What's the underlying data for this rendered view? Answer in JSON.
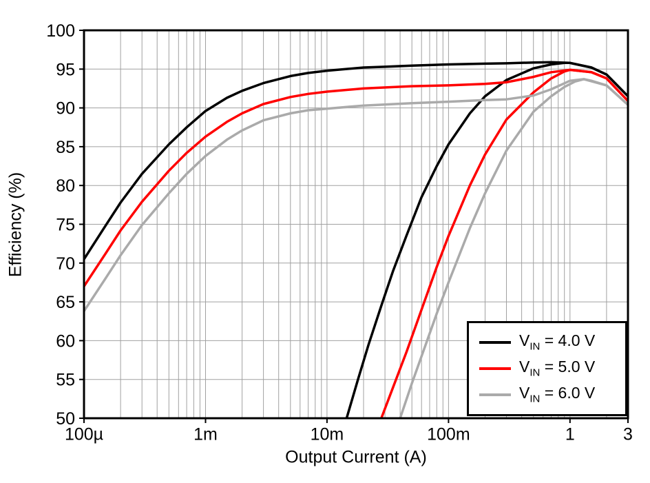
{
  "chart_data": {
    "type": "line",
    "title": "",
    "xlabel": "Output Current (A)",
    "ylabel": "Efficiency (%)",
    "x_scale": "log",
    "xlim": [
      0.0001,
      3
    ],
    "ylim": [
      50,
      100
    ],
    "y_tick_step": 5,
    "grid": true,
    "legend_position": "bottom-right",
    "x_ticks": [
      {
        "v": 0.0001,
        "label": "100µ"
      },
      {
        "v": 0.001,
        "label": "1m"
      },
      {
        "v": 0.01,
        "label": "10m"
      },
      {
        "v": 0.1,
        "label": "100m"
      },
      {
        "v": 1,
        "label": "1"
      },
      {
        "v": 3,
        "label": "3"
      }
    ],
    "series": [
      {
        "name": "VIN = 4.0 V",
        "label_prefix": "V",
        "label_sub": "IN",
        "label_suffix": " = 4.0 V",
        "color": "#000000",
        "branch": "power-save-mode",
        "show_in_legend": true,
        "points": [
          [
            0.0001,
            70.5
          ],
          [
            0.00015,
            74.8
          ],
          [
            0.0002,
            77.8
          ],
          [
            0.0003,
            81.5
          ],
          [
            0.0005,
            85.3
          ],
          [
            0.0007,
            87.5
          ],
          [
            0.001,
            89.6
          ],
          [
            0.0015,
            91.3
          ],
          [
            0.002,
            92.2
          ],
          [
            0.003,
            93.2
          ],
          [
            0.005,
            94.1
          ],
          [
            0.007,
            94.5
          ],
          [
            0.01,
            94.8
          ],
          [
            0.02,
            95.2
          ],
          [
            0.03,
            95.3
          ],
          [
            0.05,
            95.45
          ],
          [
            0.1,
            95.6
          ],
          [
            0.2,
            95.7
          ],
          [
            0.3,
            95.75
          ],
          [
            0.5,
            95.85
          ],
          [
            0.7,
            95.9
          ],
          [
            1,
            95.8
          ],
          [
            1.5,
            95.2
          ],
          [
            2,
            94.3
          ],
          [
            3,
            91.5
          ]
        ]
      },
      {
        "name": "VIN = 4.0 V (forced PWM)",
        "label_prefix": "V",
        "label_sub": "IN",
        "label_suffix": " = 4.0 V",
        "color": "#000000",
        "branch": "forced-pwm",
        "show_in_legend": false,
        "points": [
          [
            0.0145,
            50
          ],
          [
            0.018,
            55
          ],
          [
            0.022,
            59.5
          ],
          [
            0.028,
            64.5
          ],
          [
            0.035,
            69
          ],
          [
            0.045,
            73.5
          ],
          [
            0.06,
            78.5
          ],
          [
            0.08,
            82.5
          ],
          [
            0.1,
            85.3
          ],
          [
            0.15,
            89.3
          ],
          [
            0.2,
            91.5
          ],
          [
            0.3,
            93.6
          ],
          [
            0.5,
            95.1
          ],
          [
            0.7,
            95.6
          ],
          [
            0.9,
            95.8
          ],
          [
            1,
            95.8
          ],
          [
            1.5,
            95.2
          ],
          [
            2,
            94.3
          ],
          [
            3,
            91.5
          ]
        ]
      },
      {
        "name": "VIN = 5.0 V",
        "label_prefix": "V",
        "label_sub": "IN",
        "label_suffix": " = 5.0 V",
        "color": "#ff0000",
        "branch": "power-save-mode",
        "show_in_legend": true,
        "points": [
          [
            0.0001,
            67
          ],
          [
            0.00015,
            71.2
          ],
          [
            0.0002,
            74.2
          ],
          [
            0.0003,
            77.9
          ],
          [
            0.0005,
            81.9
          ],
          [
            0.0007,
            84.2
          ],
          [
            0.001,
            86.3
          ],
          [
            0.0015,
            88.2
          ],
          [
            0.002,
            89.3
          ],
          [
            0.003,
            90.5
          ],
          [
            0.005,
            91.4
          ],
          [
            0.007,
            91.8
          ],
          [
            0.01,
            92.1
          ],
          [
            0.02,
            92.5
          ],
          [
            0.05,
            92.8
          ],
          [
            0.1,
            92.9
          ],
          [
            0.2,
            93.1
          ],
          [
            0.3,
            93.3
          ],
          [
            0.5,
            94.0
          ],
          [
            0.7,
            94.6
          ],
          [
            1,
            94.9
          ],
          [
            1.5,
            94.6
          ],
          [
            2,
            93.8
          ],
          [
            3,
            90.9
          ]
        ]
      },
      {
        "name": "VIN = 5.0 V (forced PWM)",
        "label_prefix": "V",
        "label_sub": "IN",
        "label_suffix": " = 5.0 V",
        "color": "#ff0000",
        "branch": "forced-pwm",
        "show_in_legend": false,
        "points": [
          [
            0.028,
            50
          ],
          [
            0.035,
            54
          ],
          [
            0.045,
            58.5
          ],
          [
            0.06,
            64
          ],
          [
            0.08,
            69.5
          ],
          [
            0.1,
            73.5
          ],
          [
            0.15,
            80
          ],
          [
            0.2,
            84
          ],
          [
            0.3,
            88.5
          ],
          [
            0.5,
            92
          ],
          [
            0.7,
            93.8
          ],
          [
            0.9,
            94.7
          ],
          [
            1,
            94.9
          ],
          [
            1.5,
            94.6
          ],
          [
            2,
            93.8
          ],
          [
            3,
            90.9
          ]
        ]
      },
      {
        "name": "VIN = 6.0 V",
        "label_prefix": "V",
        "label_sub": "IN",
        "label_suffix": " = 6.0 V",
        "color": "#aaaaaa",
        "branch": "power-save-mode",
        "show_in_legend": true,
        "points": [
          [
            0.0001,
            63.8
          ],
          [
            0.00015,
            68
          ],
          [
            0.0002,
            71
          ],
          [
            0.0003,
            74.9
          ],
          [
            0.0005,
            79
          ],
          [
            0.0007,
            81.5
          ],
          [
            0.001,
            83.8
          ],
          [
            0.0015,
            85.9
          ],
          [
            0.002,
            87.1
          ],
          [
            0.003,
            88.4
          ],
          [
            0.005,
            89.3
          ],
          [
            0.007,
            89.7
          ],
          [
            0.01,
            89.9
          ],
          [
            0.02,
            90.3
          ],
          [
            0.05,
            90.6
          ],
          [
            0.1,
            90.8
          ],
          [
            0.2,
            91.0
          ],
          [
            0.3,
            91.1
          ],
          [
            0.5,
            91.6
          ],
          [
            0.7,
            92.4
          ],
          [
            1,
            93.5
          ],
          [
            1.3,
            93.7
          ],
          [
            2,
            92.9
          ],
          [
            3,
            90.4
          ]
        ]
      },
      {
        "name": "VIN = 6.0 V (forced PWM)",
        "label_prefix": "V",
        "label_sub": "IN",
        "label_suffix": " = 6.0 V",
        "color": "#aaaaaa",
        "branch": "forced-pwm",
        "show_in_legend": false,
        "points": [
          [
            0.04,
            50
          ],
          [
            0.05,
            54.5
          ],
          [
            0.065,
            59.5
          ],
          [
            0.08,
            63.5
          ],
          [
            0.1,
            67.5
          ],
          [
            0.15,
            74.5
          ],
          [
            0.2,
            79
          ],
          [
            0.3,
            84.5
          ],
          [
            0.5,
            89.5
          ],
          [
            0.7,
            91.5
          ],
          [
            0.9,
            92.7
          ],
          [
            1.1,
            93.4
          ],
          [
            1.3,
            93.7
          ],
          [
            1.5,
            93.5
          ],
          [
            2,
            92.9
          ],
          [
            3,
            90.4
          ]
        ]
      }
    ],
    "style": {
      "grid_color": "#a0a0a0",
      "axis_color": "#000000",
      "background": "#ffffff"
    }
  }
}
